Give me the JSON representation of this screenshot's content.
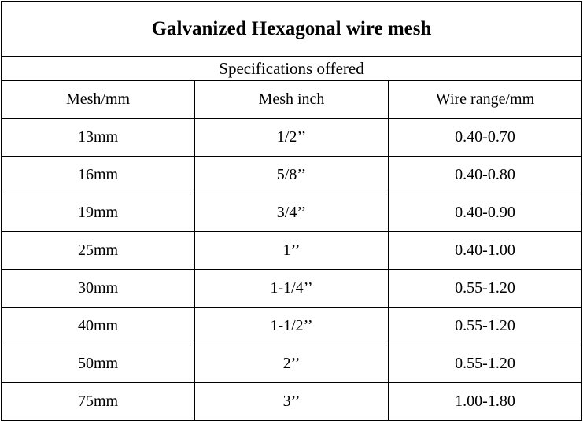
{
  "table": {
    "title": "Galvanized Hexagonal wire mesh",
    "subtitle": "Specifications offered",
    "header": [
      "Mesh/mm",
      "Mesh inch",
      "Wire range/mm"
    ],
    "rows": [
      [
        "13mm",
        "1/2’’",
        "0.40-0.70"
      ],
      [
        "16mm",
        "5/8’’",
        "0.40-0.80"
      ],
      [
        "19mm",
        "3/4’’",
        "0.40-0.90"
      ],
      [
        "25mm",
        "1’’",
        "0.40-1.00"
      ],
      [
        "30mm",
        "1-1/4’’",
        "0.55-1.20"
      ],
      [
        "40mm",
        "1-1/2’’",
        "0.55-1.20"
      ],
      [
        "50mm",
        "2’’",
        "0.55-1.20"
      ],
      [
        "75mm",
        "3’’",
        "1.00-1.80"
      ]
    ]
  }
}
